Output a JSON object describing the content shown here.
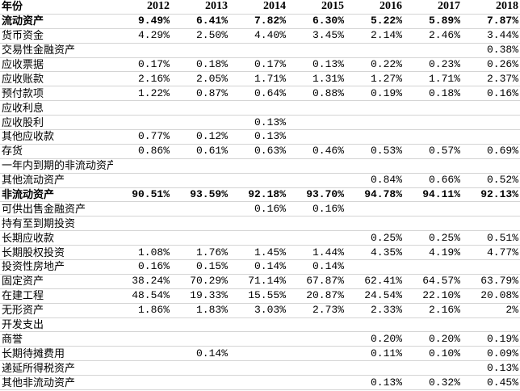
{
  "table": {
    "header": [
      "年份",
      "2012",
      "2013",
      "2014",
      "2015",
      "2016",
      "2017",
      "2018"
    ],
    "rows": [
      [
        "流动资产",
        "9.49%",
        "6.41%",
        "7.82%",
        "6.30%",
        "5.22%",
        "5.89%",
        "7.87%"
      ],
      [
        "货币资金",
        "4.29%",
        "2.50%",
        "4.40%",
        "3.45%",
        "2.14%",
        "2.46%",
        "3.44%"
      ],
      [
        "交易性金融资产",
        null,
        null,
        null,
        null,
        null,
        null,
        "0.38%"
      ],
      [
        "应收票据",
        "0.17%",
        "0.18%",
        "0.17%",
        "0.13%",
        "0.22%",
        "0.23%",
        "0.26%"
      ],
      [
        "应收账款",
        "2.16%",
        "2.05%",
        "1.71%",
        "1.31%",
        "1.27%",
        "1.71%",
        "2.37%"
      ],
      [
        "预付款项",
        "1.22%",
        "0.87%",
        "0.64%",
        "0.88%",
        "0.19%",
        "0.18%",
        "0.16%"
      ],
      [
        "应收利息",
        null,
        null,
        null,
        null,
        null,
        null,
        null
      ],
      [
        "应收股利",
        null,
        null,
        "0.13%",
        null,
        null,
        null,
        null
      ],
      [
        "其他应收款",
        "0.77%",
        "0.12%",
        "0.13%",
        null,
        null,
        null,
        null
      ],
      [
        "存货",
        "0.86%",
        "0.61%",
        "0.63%",
        "0.46%",
        "0.53%",
        "0.57%",
        "0.69%"
      ],
      [
        "一年内到期的非流动资产",
        null,
        null,
        null,
        null,
        null,
        null,
        null
      ],
      [
        "其他流动资产",
        null,
        null,
        null,
        null,
        "0.84%",
        "0.66%",
        "0.52%"
      ],
      [
        "非流动资产",
        "90.51%",
        "93.59%",
        "92.18%",
        "93.70%",
        "94.78%",
        "94.11%",
        "92.13%"
      ],
      [
        "可供出售金融资产",
        null,
        null,
        "0.16%",
        "0.16%",
        null,
        null,
        null
      ],
      [
        "持有至到期投资",
        null,
        null,
        null,
        null,
        null,
        null,
        null
      ],
      [
        "长期应收款",
        null,
        null,
        null,
        null,
        "0.25%",
        "0.25%",
        "0.51%"
      ],
      [
        "长期股权投资",
        "1.08%",
        "1.76%",
        "1.45%",
        "1.44%",
        "4.35%",
        "4.19%",
        "4.77%"
      ],
      [
        "投资性房地产",
        "0.16%",
        "0.15%",
        "0.14%",
        "0.14%",
        null,
        null,
        null
      ],
      [
        "固定资产",
        "38.24%",
        "70.29%",
        "71.14%",
        "67.87%",
        "62.41%",
        "64.57%",
        "63.79%"
      ],
      [
        "在建工程",
        "48.54%",
        "19.33%",
        "15.55%",
        "20.87%",
        "24.54%",
        "22.10%",
        "20.08%"
      ],
      [
        "无形资产",
        "1.86%",
        "1.83%",
        "3.03%",
        "2.73%",
        "2.33%",
        "2.16%",
        "2%"
      ],
      [
        "开发支出",
        null,
        null,
        null,
        null,
        null,
        null,
        null
      ],
      [
        "商誉",
        null,
        null,
        null,
        null,
        "0.20%",
        "0.20%",
        "0.19%"
      ],
      [
        "长期待摊费用",
        null,
        "0.14%",
        null,
        null,
        "0.11%",
        "0.10%",
        "0.09%"
      ],
      [
        "递延所得税资产",
        null,
        null,
        null,
        null,
        null,
        null,
        "0.13%"
      ],
      [
        "其他非流动资产",
        null,
        null,
        null,
        null,
        "0.13%",
        "0.32%",
        "0.45%"
      ]
    ],
    "bold_rows": [
      0,
      12
    ]
  }
}
